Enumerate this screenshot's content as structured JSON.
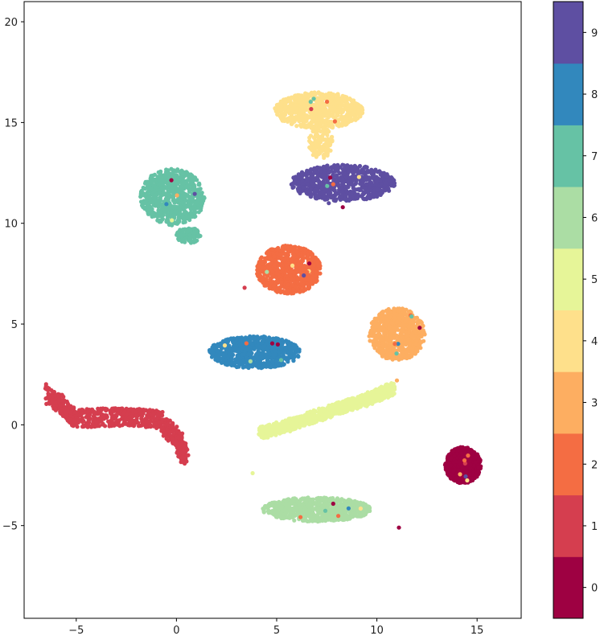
{
  "chart_data": {
    "type": "scatter",
    "title": "",
    "xlabel": "",
    "ylabel": "",
    "xlim": [
      -7.6,
      17.2
    ],
    "ylim": [
      -9.6,
      21.0
    ],
    "x_ticks": [
      -5,
      0,
      5,
      10,
      15
    ],
    "y_ticks": [
      -5,
      0,
      5,
      10,
      15,
      20
    ],
    "grid": false,
    "colorbar": {
      "ticks": [
        0,
        1,
        2,
        3,
        4,
        5,
        6,
        7,
        8,
        9
      ],
      "colors": [
        "#9e0142",
        "#d53e4f",
        "#f46d43",
        "#fdae61",
        "#fee08b",
        "#e6f598",
        "#abdda4",
        "#66c2a5",
        "#3288bd",
        "#5e4fa2"
      ],
      "placement": "right"
    },
    "clusters": [
      {
        "label": 0,
        "center": [
          14.3,
          -2.0
        ],
        "spread": [
          0.9,
          0.9
        ],
        "shape": "ellipse"
      },
      {
        "label": 1,
        "shape": "curve",
        "path": [
          [
            -6.5,
            1.6
          ],
          [
            -5.0,
            0.3
          ],
          [
            -3.0,
            0.4
          ],
          [
            -1.0,
            0.3
          ],
          [
            0.1,
            -0.7
          ],
          [
            0.4,
            -1.6
          ]
        ],
        "thickness": 0.9
      },
      {
        "label": 2,
        "center": [
          5.6,
          7.7
        ],
        "spread": [
          1.6,
          1.2
        ],
        "shape": "ellipse"
      },
      {
        "label": 3,
        "center": [
          11.0,
          4.5
        ],
        "spread": [
          1.4,
          1.3
        ],
        "shape": "ellipse"
      },
      {
        "label": 4,
        "center": [
          7.1,
          15.6
        ],
        "spread": [
          2.2,
          0.9
        ],
        "shape": "ellipse",
        "extra": [
          [
            7.2,
            14.0
          ],
          [
            0.6,
            0.8
          ]
        ]
      },
      {
        "label": 5,
        "shape": "curve",
        "path": [
          [
            4.2,
            -0.4
          ],
          [
            6.0,
            0.1
          ],
          [
            8.0,
            0.8
          ],
          [
            9.6,
            1.3
          ],
          [
            10.8,
            1.8
          ]
        ],
        "thickness": 0.6
      },
      {
        "label": 6,
        "center": [
          7.0,
          -4.2
        ],
        "spread": [
          2.7,
          0.6
        ],
        "shape": "ellipse"
      },
      {
        "label": 7,
        "center": [
          -0.2,
          11.3
        ],
        "spread": [
          1.6,
          1.4
        ],
        "shape": "ellipse",
        "extra": [
          [
            0.6,
            9.4
          ],
          [
            0.6,
            0.4
          ]
        ]
      },
      {
        "label": 8,
        "center": [
          3.9,
          3.6
        ],
        "spread": [
          2.3,
          0.8
        ],
        "shape": "ellipse"
      },
      {
        "label": 9,
        "center": [
          8.3,
          12.0
        ],
        "spread": [
          2.6,
          0.9
        ],
        "shape": "ellipse"
      }
    ],
    "outliers": [
      {
        "label": 0,
        "x": 11.1,
        "y": -5.1
      },
      {
        "label": 5,
        "x": 3.8,
        "y": -2.4
      },
      {
        "label": 3,
        "x": 11.0,
        "y": 2.2
      },
      {
        "label": 1,
        "x": 3.4,
        "y": 6.8
      },
      {
        "label": 9,
        "x": 7.6,
        "y": 11.0
      },
      {
        "label": 0,
        "x": 8.3,
        "y": 10.8
      }
    ]
  }
}
